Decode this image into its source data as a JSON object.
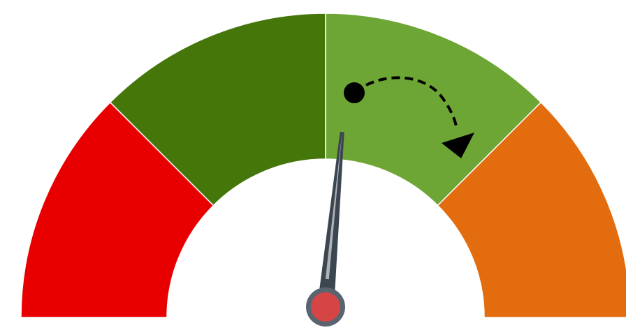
{
  "gauge": {
    "segments": [
      {
        "name": "segment-1",
        "color": "#e80000"
      },
      {
        "name": "segment-2",
        "color": "#45760a"
      },
      {
        "name": "segment-3",
        "color": "#6ea636"
      },
      {
        "name": "segment-4",
        "color": "#e36c0e"
      }
    ],
    "needle": {
      "value_fraction": 0.53,
      "color": "#3c4650",
      "hub_color": "#d64545"
    },
    "rotation_arrow": {
      "direction": "clockwise",
      "style": "dashed",
      "color": "#000000"
    }
  }
}
